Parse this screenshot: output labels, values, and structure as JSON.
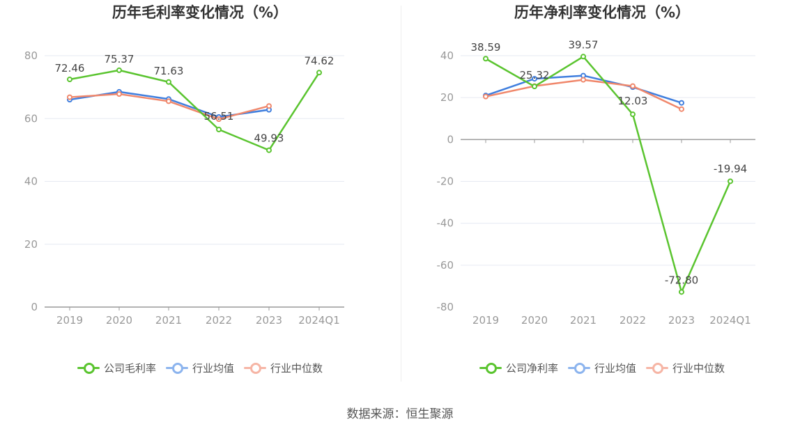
{
  "charts": [
    {
      "title": "历年毛利率变化情况（%）",
      "legend": [
        "公司毛利率",
        "行业均值",
        "行业中位数"
      ]
    },
    {
      "title": "历年净利率变化情况（%）",
      "legend": [
        "公司净利率",
        "行业均值",
        "行业中位数"
      ]
    }
  ],
  "source": "数据来源：恒生聚源",
  "colors": {
    "company": "#5ac42f",
    "industry_avg": "#3f7ede",
    "industry_median": "#f0876b"
  },
  "chart_data": [
    {
      "type": "line",
      "title": "历年毛利率变化情况（%）",
      "categories": [
        "2019",
        "2020",
        "2021",
        "2022",
        "2023",
        "2024Q1"
      ],
      "ylim": [
        0,
        80
      ],
      "yticks": [
        0,
        20,
        40,
        60,
        80
      ],
      "grid": true,
      "legend_position": "bottom",
      "series": [
        {
          "name": "公司毛利率",
          "values": [
            72.46,
            75.37,
            71.63,
            56.51,
            49.93,
            74.62
          ],
          "labels": [
            "72.46",
            "75.37",
            "71.63",
            "56.51",
            "49.93",
            "74.62"
          ],
          "color": "#5ac42f"
        },
        {
          "name": "行业均值",
          "values": [
            66.0,
            68.5,
            66.2,
            60.5,
            62.8,
            null
          ],
          "color": "#3f7ede"
        },
        {
          "name": "行业中位数",
          "values": [
            66.8,
            67.8,
            65.5,
            59.8,
            64.0,
            null
          ],
          "color": "#f0876b"
        }
      ]
    },
    {
      "type": "line",
      "title": "历年净利率变化情况（%）",
      "categories": [
        "2019",
        "2020",
        "2021",
        "2022",
        "2023",
        "2024Q1"
      ],
      "ylim": [
        -80,
        40
      ],
      "yticks": [
        -80,
        -60,
        -40,
        -20,
        0,
        20,
        40
      ],
      "grid": true,
      "legend_position": "bottom",
      "series": [
        {
          "name": "公司净利率",
          "values": [
            38.59,
            25.32,
            39.57,
            12.03,
            -72.8,
            -19.94
          ],
          "labels": [
            "38.59",
            "25.32",
            "39.57",
            "12.03",
            "-72.80",
            "-19.94"
          ],
          "color": "#5ac42f"
        },
        {
          "name": "行业均值",
          "values": [
            21.0,
            29.0,
            30.5,
            25.0,
            17.5,
            null
          ],
          "color": "#3f7ede"
        },
        {
          "name": "行业中位数",
          "values": [
            20.5,
            25.5,
            28.5,
            25.5,
            14.5,
            null
          ],
          "color": "#f0876b"
        }
      ]
    }
  ]
}
